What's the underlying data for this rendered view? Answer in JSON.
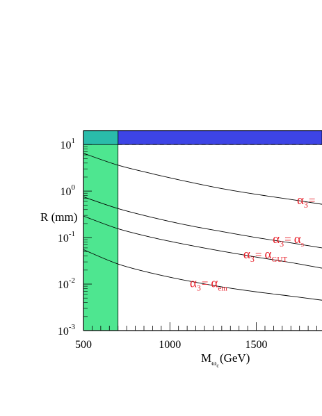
{
  "chart_data": {
    "type": "line",
    "title": "",
    "xlabel": "M",
    "xlabel_sub": "ω",
    "xlabel_subsub": "c",
    "xlabel_unit": "(GeV)",
    "ylabel": "R (mm)",
    "xlim": [
      500,
      1880
    ],
    "ylim": [
      0.001,
      20
    ],
    "yscale": "log",
    "x_ticks": [
      {
        "value": 500,
        "label": "500"
      },
      {
        "value": 1000,
        "label": "1000"
      },
      {
        "value": 1500,
        "label": "1500"
      }
    ],
    "y_ticks": [
      {
        "value": 10,
        "base": "10",
        "exp": "1"
      },
      {
        "value": 1,
        "base": "10",
        "exp": "0"
      },
      {
        "value": 0.1,
        "base": "10",
        "exp": "-1"
      },
      {
        "value": 0.01,
        "base": "10",
        "exp": "-2"
      },
      {
        "value": 0.001,
        "base": "10",
        "exp": "-3"
      }
    ],
    "regions": [
      {
        "name": "excluded-low-mass",
        "x": [
          500,
          700
        ],
        "y": [
          0.001,
          10
        ],
        "color": "#4ee690"
      },
      {
        "name": "excluded-top-band",
        "x": [
          700,
          1880
        ],
        "y": [
          10,
          20
        ],
        "color": "#3d44e6"
      },
      {
        "name": "overlap-corner",
        "x": [
          500,
          700
        ],
        "y": [
          10,
          20
        ],
        "color": "#2abcaa"
      }
    ],
    "series": [
      {
        "x": [
          500,
          700,
          900,
          1100,
          1300,
          1500,
          1700,
          1880
        ],
        "y": [
          6.5,
          3.6,
          2.35,
          1.6,
          1.13,
          0.85,
          0.66,
          0.52
        ]
      },
      {
        "x": [
          500,
          700,
          900,
          1100,
          1300,
          1500,
          1700,
          1880
        ],
        "y": [
          0.75,
          0.42,
          0.27,
          0.185,
          0.135,
          0.1,
          0.077,
          0.06
        ]
      },
      {
        "x": [
          500,
          700,
          900,
          1100,
          1300,
          1500,
          1700,
          1880
        ],
        "y": [
          0.29,
          0.155,
          0.1,
          0.07,
          0.051,
          0.038,
          0.029,
          0.022
        ]
      },
      {
        "x": [
          500,
          700,
          900,
          1100,
          1300,
          1500,
          1700,
          1880
        ],
        "y": [
          0.055,
          0.027,
          0.017,
          0.0118,
          0.0087,
          0.0068,
          0.0055,
          0.0045
        ]
      }
    ],
    "annotations": [
      {
        "alpha": "α",
        "sub": "3",
        "eq": "=",
        "rhs": "",
        "rhs_sub": "",
        "x": 1735,
        "y": 0.52
      },
      {
        "alpha": "α",
        "sub": "3",
        "eq": "=",
        "rhs": "α",
        "rhs_sub": "s",
        "x": 1595,
        "y": 0.076
      },
      {
        "alpha": "α",
        "sub": "3",
        "eq": "=",
        "rhs": "α",
        "rhs_sub": "GUT",
        "x": 1425,
        "y": 0.036
      },
      {
        "alpha": "α",
        "sub": "3",
        "eq": "=",
        "rhs": "α",
        "rhs_sub": "em",
        "x": 1115,
        "y": 0.0086
      }
    ],
    "grid": false,
    "legend": "none"
  }
}
